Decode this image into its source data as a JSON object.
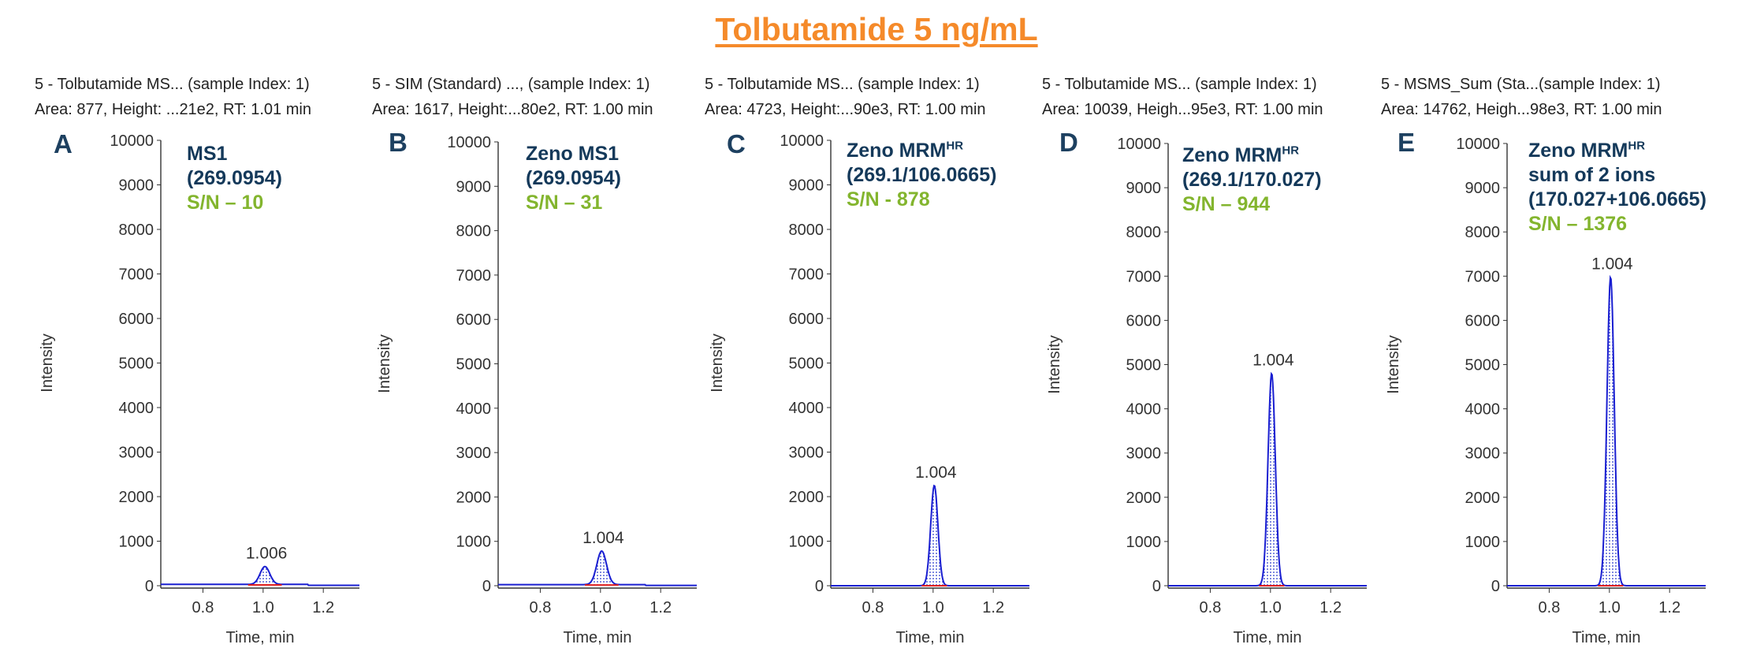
{
  "title": "Tolbutamide 5 ng/mL",
  "chart_data": [
    {
      "type": "line",
      "panel_letter": "A",
      "header_line1": "5 - Tolbutamide MS... (sample Index: 1)",
      "header_line2": "Area: 877, Height: ...21e2, RT: 1.01 min",
      "annotation": {
        "name": "MS1",
        "sup": "",
        "line2": "(269.0954)",
        "line3": "",
        "sn": "S/N – 10"
      },
      "peak_label": "1.006",
      "peak_rt": 1.006,
      "peak_height": 430,
      "peak_width": 0.016,
      "baseline": 30,
      "xlabel": "Time, min",
      "ylabel": "Intensity",
      "xlim": [
        0.66,
        1.32
      ],
      "ylim": [
        0,
        10000
      ],
      "xticks": [
        0.8,
        1.0,
        1.2
      ],
      "yticks": [
        0,
        1000,
        2000,
        3000,
        4000,
        5000,
        6000,
        7000,
        8000,
        9000,
        10000
      ]
    },
    {
      "type": "line",
      "panel_letter": "B",
      "header_line1": "5 - SIM (Standard) ..., (sample Index: 1)",
      "header_line2": "Area: 1617, Height:...80e2, RT: 1.00 min",
      "annotation": {
        "name": "Zeno MS1",
        "sup": "",
        "line2": "(269.0954)",
        "line3": "",
        "sn": "S/N – 31"
      },
      "peak_label": "1.004",
      "peak_rt": 1.004,
      "peak_height": 780,
      "peak_width": 0.016,
      "baseline": 25,
      "xlabel": "Time, min",
      "ylabel": "Intensity",
      "xlim": [
        0.66,
        1.32
      ],
      "ylim": [
        0,
        10000
      ],
      "xticks": [
        0.8,
        1.0,
        1.2
      ],
      "yticks": [
        0,
        1000,
        2000,
        3000,
        4000,
        5000,
        6000,
        7000,
        8000,
        9000,
        10000
      ]
    },
    {
      "type": "line",
      "panel_letter": "C",
      "header_line1": "5 - Tolbutamide MS... (sample Index: 1)",
      "header_line2": "Area: 4723, Height:...90e3, RT: 1.00 min",
      "annotation": {
        "name": "Zeno MRM",
        "sup": "HR",
        "line2": "(269.1/106.0665)",
        "line3": "",
        "sn": "S/N - 878"
      },
      "peak_label": "1.004",
      "peak_rt": 1.004,
      "peak_height": 2250,
      "peak_width": 0.012,
      "baseline": 0,
      "xlabel": "Time, min",
      "ylabel": "Intensity",
      "xlim": [
        0.66,
        1.32
      ],
      "ylim": [
        0,
        10000
      ],
      "xticks": [
        0.8,
        1.0,
        1.2
      ],
      "yticks": [
        0,
        1000,
        2000,
        3000,
        4000,
        5000,
        6000,
        7000,
        8000,
        9000,
        10000
      ]
    },
    {
      "type": "line",
      "panel_letter": "D",
      "header_line1": "5 - Tolbutamide MS... (sample Index: 1)",
      "header_line2": "Area: 10039, Heigh...95e3, RT: 1.00 min",
      "annotation": {
        "name": "Zeno MRM",
        "sup": "HR",
        "line2": "(269.1/170.027)",
        "line3": "",
        "sn": "S/N – 944"
      },
      "peak_label": "1.004",
      "peak_rt": 1.004,
      "peak_height": 4800,
      "peak_width": 0.012,
      "baseline": 0,
      "xlabel": "Time, min",
      "ylabel": "Intensity",
      "xlim": [
        0.66,
        1.32
      ],
      "ylim": [
        0,
        10000
      ],
      "xticks": [
        0.8,
        1.0,
        1.2
      ],
      "yticks": [
        0,
        1000,
        2000,
        3000,
        4000,
        5000,
        6000,
        7000,
        8000,
        9000,
        10000
      ]
    },
    {
      "type": "line",
      "panel_letter": "E",
      "header_line1": "5 - MSMS_Sum (Sta...(sample Index: 1)",
      "header_line2": "Area: 14762, Heigh...98e3, RT: 1.00 min",
      "annotation": {
        "name": "Zeno MRM",
        "sup": "HR",
        "line2": "sum of 2 ions",
        "line3": "(170.027+106.0665)",
        "sn": "S/N – 1376"
      },
      "peak_label": "1.004",
      "peak_rt": 1.004,
      "peak_height": 6980,
      "peak_width": 0.012,
      "baseline": 0,
      "xlabel": "Time, min",
      "ylabel": "Intensity",
      "xlim": [
        0.66,
        1.32
      ],
      "ylim": [
        0,
        10000
      ],
      "xticks": [
        0.8,
        1.0,
        1.2
      ],
      "yticks": [
        0,
        1000,
        2000,
        3000,
        4000,
        5000,
        6000,
        7000,
        8000,
        9000,
        10000
      ]
    }
  ]
}
